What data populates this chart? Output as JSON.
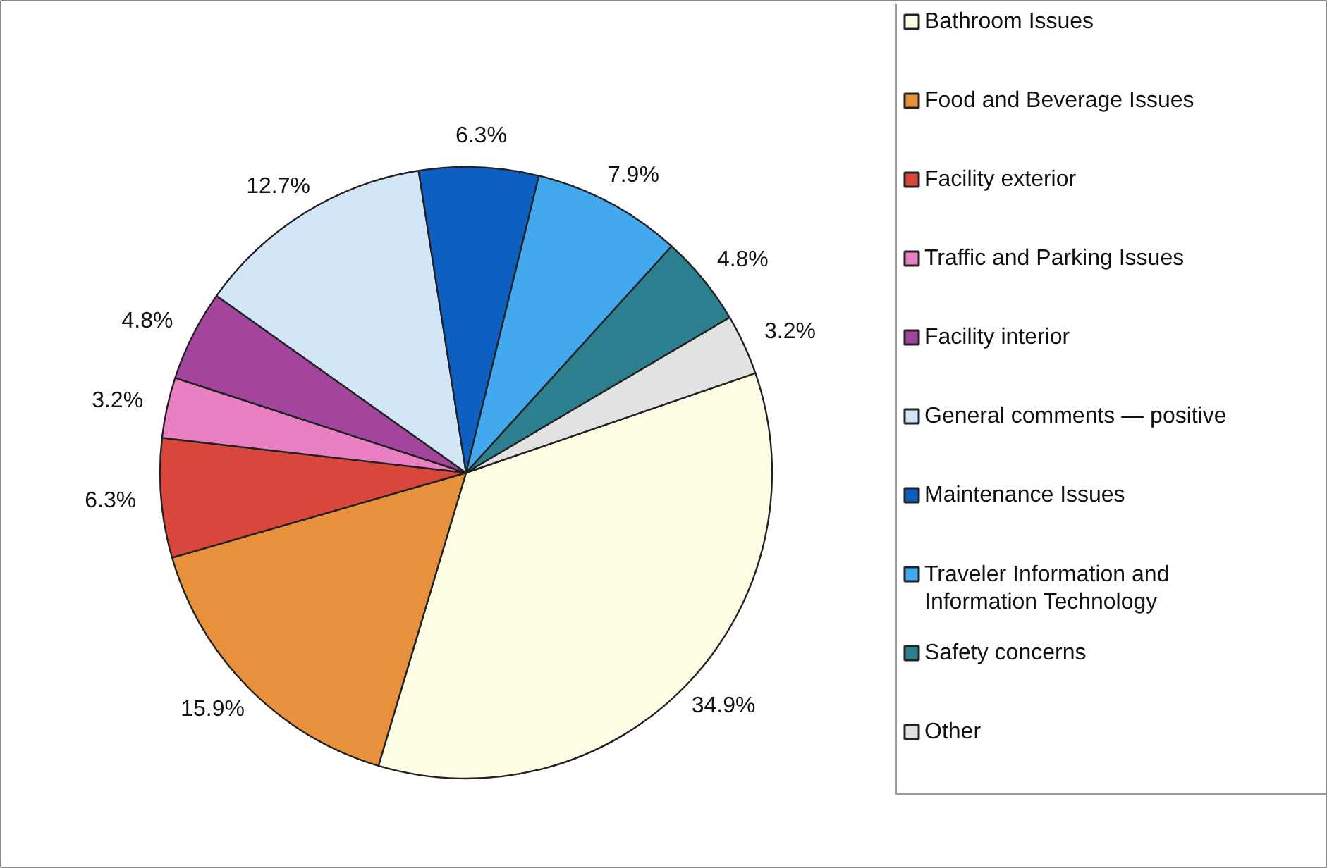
{
  "chart_data": {
    "type": "pie",
    "categories": [
      "Bathroom Issues",
      "Food and Beverage Issues",
      "Facility exterior",
      "Traffic and Parking Issues",
      "Facility interior",
      "General comments — positive",
      "Maintenance Issues",
      "Traveler Information and Information Technology",
      "Safety concerns",
      "Other"
    ],
    "values": [
      34.9,
      15.9,
      6.3,
      3.2,
      4.8,
      12.7,
      6.3,
      7.9,
      4.8,
      3.2
    ],
    "value_labels": [
      "34.9%",
      "15.9%",
      "6.3%",
      "3.2%",
      "4.8%",
      "12.7%",
      "6.3%",
      "7.9%",
      "4.8%",
      "3.2%"
    ],
    "colors": [
      "#fffde3",
      "#e8913d",
      "#d9463b",
      "#ea7fc4",
      "#a3449d",
      "#d3e6f8",
      "#0d60c2",
      "#42a9ee",
      "#2b7f8f",
      "#e2e2e2"
    ],
    "legend": "right"
  }
}
